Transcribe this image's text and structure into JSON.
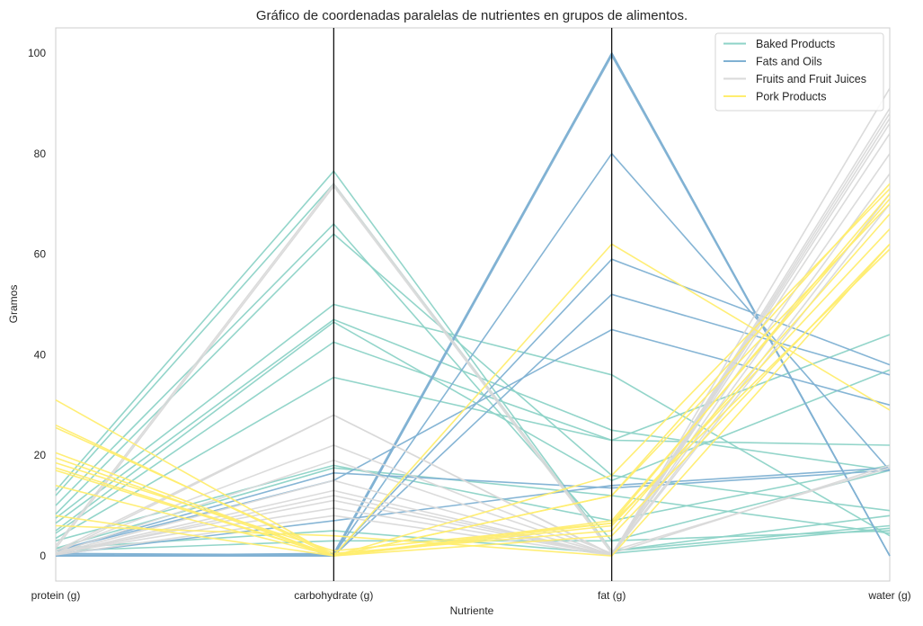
{
  "chart_data": {
    "type": "parallel_coordinates",
    "title": "Gráfico de coordenadas paralelas de nutrientes en grupos de alimentos.",
    "xlabel": "Nutriente",
    "ylabel": "Gramos",
    "dimensions": [
      "protein (g)",
      "carbohydrate (g)",
      "fat (g)",
      "water (g)"
    ],
    "ylim": [
      -5,
      105
    ],
    "yticks": [
      0,
      20,
      40,
      60,
      80,
      100
    ],
    "grid": false,
    "legend_position": "top-right",
    "series": [
      {
        "name": "Baked Products",
        "color": "#8dd3c7",
        "lines": [
          [
            13,
            76.5,
            1,
            6
          ],
          [
            12,
            74,
            1,
            8
          ],
          [
            10,
            66,
            3,
            17
          ],
          [
            8.3,
            64,
            16,
            9
          ],
          [
            7.5,
            50,
            36,
            4
          ],
          [
            6.5,
            47,
            25,
            17
          ],
          [
            5,
            46.5,
            15,
            37
          ],
          [
            4.5,
            42.5,
            23,
            22
          ],
          [
            3.5,
            35.5,
            23,
            44
          ],
          [
            3,
            18,
            7,
            18
          ],
          [
            1.5,
            17.5,
            12,
            4.5
          ],
          [
            1.5,
            5,
            0.5,
            5.5
          ],
          [
            1,
            3,
            3,
            5
          ]
        ]
      },
      {
        "name": "Fats and Oils",
        "color": "#80b1d3",
        "lines": [
          [
            0,
            0,
            100,
            0
          ],
          [
            0,
            0.5,
            100,
            0
          ],
          [
            0,
            0,
            99.5,
            0
          ],
          [
            0.5,
            0.2,
            80,
            17
          ],
          [
            0.2,
            0.1,
            59,
            38
          ],
          [
            0,
            0,
            52,
            36
          ],
          [
            1,
            15,
            45,
            30
          ],
          [
            1,
            16.5,
            13.5,
            17
          ],
          [
            0.3,
            7,
            14,
            17.5
          ]
        ]
      },
      {
        "name": "Fruits and Fruit Juices",
        "color": "#d9d9d9",
        "lines": [
          [
            2,
            74,
            1,
            17.5
          ],
          [
            1.5,
            73.5,
            0.5,
            18
          ],
          [
            1,
            28,
            0.2,
            70
          ],
          [
            0.5,
            28,
            0.3,
            72
          ],
          [
            1,
            22,
            0.5,
            76
          ],
          [
            0.5,
            19,
            0.2,
            80
          ],
          [
            0.5,
            15,
            0.3,
            84
          ],
          [
            0.4,
            13,
            0.1,
            86
          ],
          [
            0.3,
            12,
            0.2,
            87
          ],
          [
            0.5,
            11,
            0.2,
            88
          ],
          [
            0.5,
            9.5,
            0.3,
            89
          ],
          [
            0.2,
            8,
            0.1,
            93
          ]
        ]
      },
      {
        "name": "Pork Products",
        "color": "#ffed6f",
        "lines": [
          [
            31,
            0,
            4,
            62
          ],
          [
            26,
            0,
            6,
            65
          ],
          [
            25.5,
            0.5,
            5,
            68
          ],
          [
            20.5,
            0,
            12,
            70
          ],
          [
            19.5,
            0,
            7,
            71
          ],
          [
            18.5,
            1,
            6.5,
            72
          ],
          [
            17.5,
            0,
            16,
            73
          ],
          [
            17,
            0,
            12,
            74
          ],
          [
            14,
            0,
            62,
            29
          ],
          [
            8,
            0,
            6.5,
            61
          ],
          [
            6,
            4,
            0,
            62
          ]
        ]
      }
    ]
  }
}
